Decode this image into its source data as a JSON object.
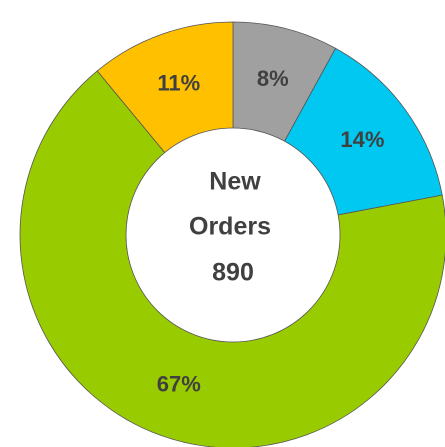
{
  "chart_data": {
    "type": "donut",
    "categories": [
      null,
      null,
      null,
      null
    ],
    "values": [
      8,
      14,
      67,
      11
    ],
    "value_labels": [
      "8%",
      "14%",
      "67%",
      "11%"
    ],
    "colors": [
      "#a0a0a0",
      "#00c8f0",
      "#99cc00",
      "#ffc000"
    ],
    "center_label": [
      "New",
      "Orders"
    ],
    "total": 890
  }
}
